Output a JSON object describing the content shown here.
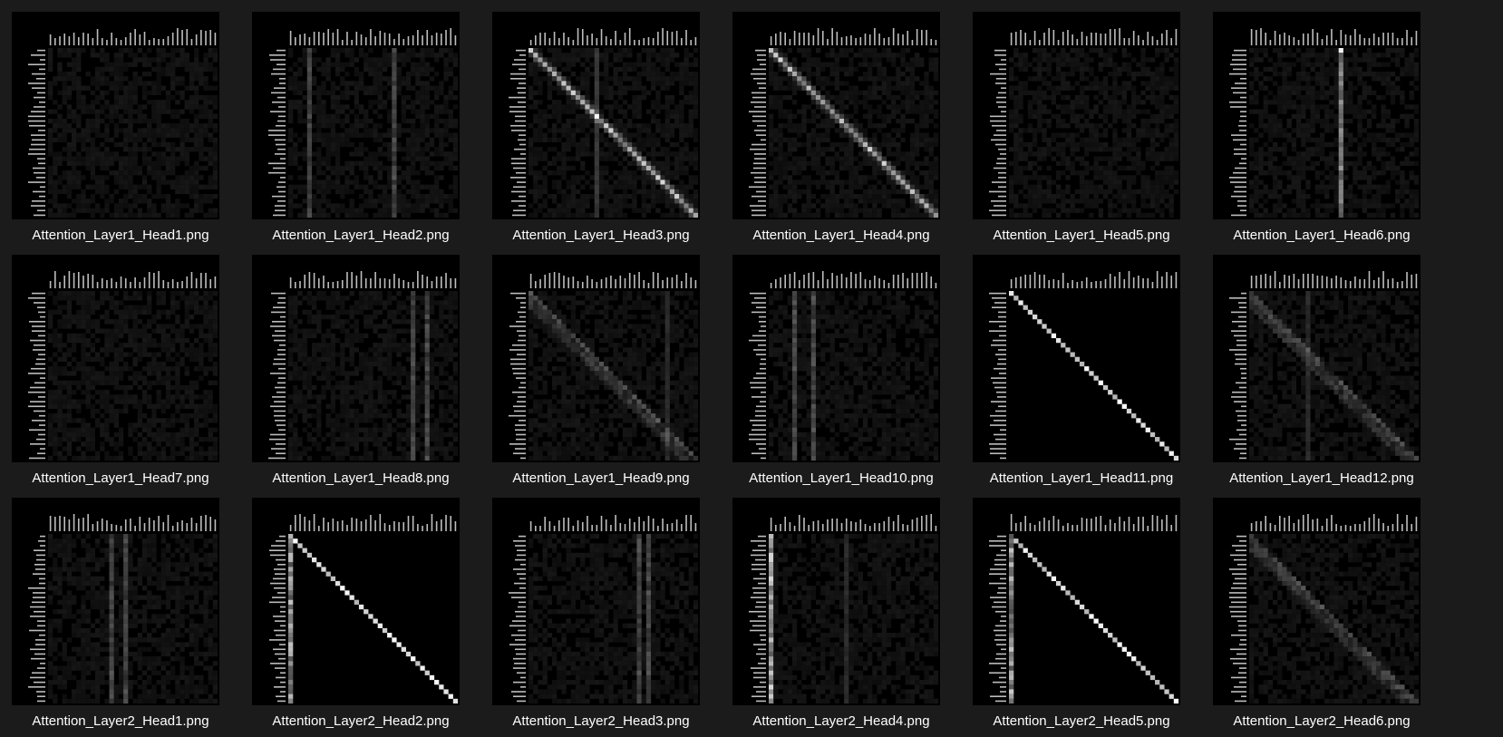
{
  "explorer": {
    "background": "#1b1b1b",
    "label_color": "#ffffff",
    "files": [
      {
        "name": "Attention_Layer1_Head1.png",
        "pattern": "uniform"
      },
      {
        "name": "Attention_Layer1_Head2.png",
        "pattern": "columns"
      },
      {
        "name": "Attention_Layer1_Head3.png",
        "pattern": "diagonal-lower"
      },
      {
        "name": "Attention_Layer1_Head4.png",
        "pattern": "diagonal"
      },
      {
        "name": "Attention_Layer1_Head5.png",
        "pattern": "uniform"
      },
      {
        "name": "Attention_Layer1_Head6.png",
        "pattern": "bright-column"
      },
      {
        "name": "Attention_Layer1_Head7.png",
        "pattern": "uniform"
      },
      {
        "name": "Attention_Layer1_Head8.png",
        "pattern": "columns"
      },
      {
        "name": "Attention_Layer1_Head9.png",
        "pattern": "diffuse-diagonal"
      },
      {
        "name": "Attention_Layer1_Head10.png",
        "pattern": "columns"
      },
      {
        "name": "Attention_Layer1_Head11.png",
        "pattern": "diagonal-strong"
      },
      {
        "name": "Attention_Layer1_Head12.png",
        "pattern": "diffuse-diagonal"
      },
      {
        "name": "Attention_Layer2_Head1.png",
        "pattern": "columns"
      },
      {
        "name": "Attention_Layer2_Head2.png",
        "pattern": "diagonal-strong-col"
      },
      {
        "name": "Attention_Layer2_Head3.png",
        "pattern": "columns"
      },
      {
        "name": "Attention_Layer2_Head4.png",
        "pattern": "left-column"
      },
      {
        "name": "Attention_Layer2_Head5.png",
        "pattern": "diagonal-strong-col"
      },
      {
        "name": "Attention_Layer2_Head6.png",
        "pattern": "diffuse-lower"
      }
    ]
  }
}
